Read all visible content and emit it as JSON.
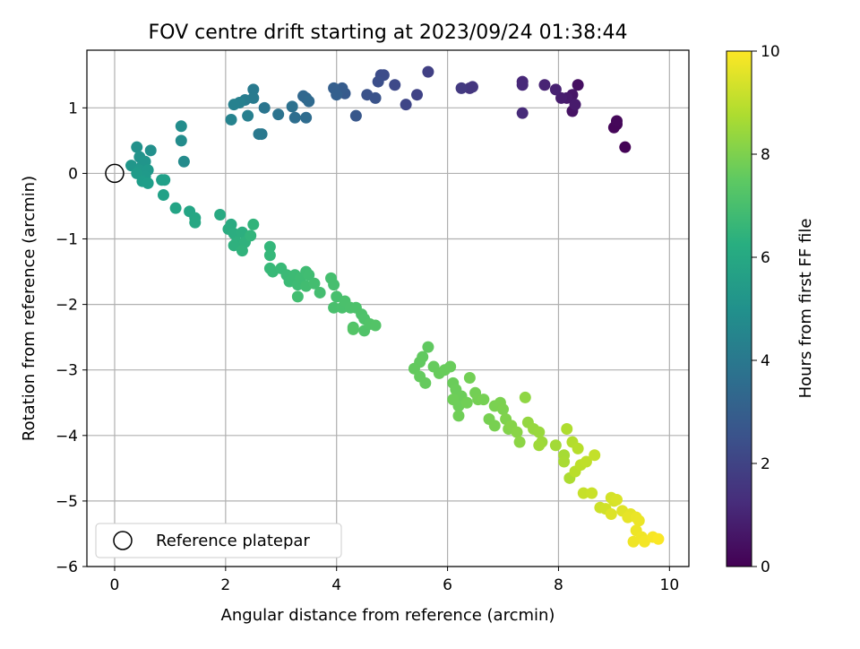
{
  "chart_data": {
    "type": "scatter",
    "title": "FOV centre drift starting at 2023/09/24 01:38:44",
    "xlabel": "Angular distance from reference (arcmin)",
    "ylabel": "Rotation from reference (arcmin)",
    "xlim": [
      -0.5,
      10.35
    ],
    "ylim": [
      -6.0,
      1.88
    ],
    "xticks": [
      0,
      2,
      4,
      6,
      8,
      10
    ],
    "yticks": [
      -6,
      -5,
      -4,
      -3,
      -2,
      -1,
      0,
      1
    ],
    "grid": true,
    "colormap": "viridis",
    "colorbar": {
      "label": "Hours from first FF file",
      "range": [
        0,
        10
      ],
      "ticks": [
        0,
        2,
        4,
        6,
        8,
        10
      ]
    },
    "legend": {
      "placement": "lower-left",
      "entries": [
        "Reference platepar"
      ]
    },
    "reference_point": {
      "x": 0,
      "y": 0
    },
    "points": [
      {
        "x": 9.2,
        "y": 0.4,
        "c": 0.05
      },
      {
        "x": 9.05,
        "y": 0.75,
        "c": 0.1
      },
      {
        "x": 9.0,
        "y": 0.7,
        "c": 0.15
      },
      {
        "x": 9.05,
        "y": 0.8,
        "c": 0.2
      },
      {
        "x": 8.35,
        "y": 1.35,
        "c": 0.4
      },
      {
        "x": 8.25,
        "y": 0.95,
        "c": 0.5
      },
      {
        "x": 8.25,
        "y": 1.2,
        "c": 0.6
      },
      {
        "x": 8.15,
        "y": 1.15,
        "c": 0.7
      },
      {
        "x": 8.3,
        "y": 1.05,
        "c": 0.75
      },
      {
        "x": 8.05,
        "y": 1.15,
        "c": 0.8
      },
      {
        "x": 7.95,
        "y": 1.28,
        "c": 0.9
      },
      {
        "x": 7.75,
        "y": 1.35,
        "c": 1.0
      },
      {
        "x": 7.35,
        "y": 1.4,
        "c": 1.1
      },
      {
        "x": 7.35,
        "y": 1.35,
        "c": 1.15
      },
      {
        "x": 7.35,
        "y": 0.92,
        "c": 1.2
      },
      {
        "x": 6.4,
        "y": 1.3,
        "c": 1.5
      },
      {
        "x": 6.45,
        "y": 1.32,
        "c": 1.6
      },
      {
        "x": 6.25,
        "y": 1.3,
        "c": 1.7
      },
      {
        "x": 5.65,
        "y": 1.55,
        "c": 1.9
      },
      {
        "x": 5.45,
        "y": 1.2,
        "c": 2.0
      },
      {
        "x": 5.25,
        "y": 1.05,
        "c": 2.1
      },
      {
        "x": 5.05,
        "y": 1.35,
        "c": 2.2
      },
      {
        "x": 4.8,
        "y": 1.5,
        "c": 2.3
      },
      {
        "x": 4.85,
        "y": 1.5,
        "c": 2.35
      },
      {
        "x": 4.75,
        "y": 1.4,
        "c": 2.4
      },
      {
        "x": 4.55,
        "y": 1.2,
        "c": 2.5
      },
      {
        "x": 4.7,
        "y": 1.15,
        "c": 2.55
      },
      {
        "x": 4.35,
        "y": 0.88,
        "c": 2.7
      },
      {
        "x": 4.15,
        "y": 1.22,
        "c": 2.8
      },
      {
        "x": 4.05,
        "y": 1.25,
        "c": 2.85
      },
      {
        "x": 4.1,
        "y": 1.3,
        "c": 2.9
      },
      {
        "x": 3.95,
        "y": 1.3,
        "c": 3.0
      },
      {
        "x": 4.0,
        "y": 1.2,
        "c": 3.05
      },
      {
        "x": 3.45,
        "y": 1.15,
        "c": 3.3
      },
      {
        "x": 3.4,
        "y": 1.18,
        "c": 3.35
      },
      {
        "x": 3.5,
        "y": 1.1,
        "c": 3.4
      },
      {
        "x": 3.45,
        "y": 0.85,
        "c": 3.5
      },
      {
        "x": 3.25,
        "y": 0.85,
        "c": 3.6
      },
      {
        "x": 3.2,
        "y": 1.02,
        "c": 3.7
      },
      {
        "x": 2.95,
        "y": 0.9,
        "c": 3.8
      },
      {
        "x": 2.7,
        "y": 1.0,
        "c": 3.9
      },
      {
        "x": 2.65,
        "y": 0.6,
        "c": 4.0
      },
      {
        "x": 2.6,
        "y": 0.6,
        "c": 4.05
      },
      {
        "x": 2.5,
        "y": 1.28,
        "c": 4.1
      },
      {
        "x": 2.5,
        "y": 1.15,
        "c": 4.15
      },
      {
        "x": 2.35,
        "y": 1.12,
        "c": 4.2
      },
      {
        "x": 2.4,
        "y": 0.88,
        "c": 4.3
      },
      {
        "x": 2.25,
        "y": 1.08,
        "c": 4.35
      },
      {
        "x": 2.15,
        "y": 1.05,
        "c": 4.4
      },
      {
        "x": 2.1,
        "y": 0.82,
        "c": 4.5
      },
      {
        "x": 1.25,
        "y": 0.18,
        "c": 4.8
      },
      {
        "x": 1.2,
        "y": 0.5,
        "c": 4.85
      },
      {
        "x": 1.2,
        "y": 0.72,
        "c": 4.9
      },
      {
        "x": 0.65,
        "y": 0.35,
        "c": 5.0
      },
      {
        "x": 0.4,
        "y": 0.4,
        "c": 5.05
      },
      {
        "x": 0.45,
        "y": 0.25,
        "c": 5.1
      },
      {
        "x": 0.5,
        "y": 0.12,
        "c": 5.15
      },
      {
        "x": 0.55,
        "y": 0.18,
        "c": 5.2
      },
      {
        "x": 0.3,
        "y": 0.12,
        "c": 5.25
      },
      {
        "x": 0.45,
        "y": 0.05,
        "c": 5.3
      },
      {
        "x": 0.6,
        "y": 0.05,
        "c": 5.35
      },
      {
        "x": 0.55,
        "y": -0.05,
        "c": 5.4
      },
      {
        "x": 0.4,
        "y": 0.0,
        "c": 5.45
      },
      {
        "x": 0.5,
        "y": -0.12,
        "c": 5.5
      },
      {
        "x": 0.6,
        "y": -0.15,
        "c": 5.55
      },
      {
        "x": 0.85,
        "y": -0.1,
        "c": 5.6
      },
      {
        "x": 0.9,
        "y": -0.1,
        "c": 5.65
      },
      {
        "x": 0.88,
        "y": -0.33,
        "c": 5.7
      },
      {
        "x": 1.1,
        "y": -0.53,
        "c": 5.8
      },
      {
        "x": 1.35,
        "y": -0.58,
        "c": 5.85
      },
      {
        "x": 1.45,
        "y": -0.68,
        "c": 5.9
      },
      {
        "x": 1.45,
        "y": -0.75,
        "c": 5.95
      },
      {
        "x": 1.9,
        "y": -0.63,
        "c": 6.05
      },
      {
        "x": 2.1,
        "y": -0.78,
        "c": 6.1
      },
      {
        "x": 2.05,
        "y": -0.85,
        "c": 6.15
      },
      {
        "x": 2.15,
        "y": -0.92,
        "c": 6.2
      },
      {
        "x": 2.3,
        "y": -0.9,
        "c": 6.25
      },
      {
        "x": 2.2,
        "y": -1.05,
        "c": 6.3
      },
      {
        "x": 2.15,
        "y": -1.1,
        "c": 6.35
      },
      {
        "x": 2.35,
        "y": -1.05,
        "c": 6.4
      },
      {
        "x": 2.3,
        "y": -1.18,
        "c": 6.45
      },
      {
        "x": 2.5,
        "y": -0.78,
        "c": 6.5
      },
      {
        "x": 2.45,
        "y": -0.95,
        "c": 6.55
      },
      {
        "x": 2.8,
        "y": -1.12,
        "c": 6.6
      },
      {
        "x": 2.8,
        "y": -1.25,
        "c": 6.65
      },
      {
        "x": 2.8,
        "y": -1.45,
        "c": 6.7
      },
      {
        "x": 2.85,
        "y": -1.5,
        "c": 6.72
      },
      {
        "x": 3.0,
        "y": -1.45,
        "c": 6.75
      },
      {
        "x": 3.1,
        "y": -1.55,
        "c": 6.78
      },
      {
        "x": 3.15,
        "y": -1.65,
        "c": 6.8
      },
      {
        "x": 3.25,
        "y": -1.55,
        "c": 6.82
      },
      {
        "x": 3.3,
        "y": -1.7,
        "c": 6.84
      },
      {
        "x": 3.35,
        "y": -1.6,
        "c": 6.86
      },
      {
        "x": 3.45,
        "y": -1.5,
        "c": 6.88
      },
      {
        "x": 3.5,
        "y": -1.55,
        "c": 6.9
      },
      {
        "x": 3.45,
        "y": -1.72,
        "c": 6.92
      },
      {
        "x": 3.3,
        "y": -1.88,
        "c": 6.94
      },
      {
        "x": 3.6,
        "y": -1.68,
        "c": 6.96
      },
      {
        "x": 3.7,
        "y": -1.82,
        "c": 6.98
      },
      {
        "x": 3.9,
        "y": -1.6,
        "c": 7.0
      },
      {
        "x": 3.95,
        "y": -1.7,
        "c": 7.02
      },
      {
        "x": 4.0,
        "y": -1.88,
        "c": 7.04
      },
      {
        "x": 3.95,
        "y": -2.05,
        "c": 7.06
      },
      {
        "x": 4.1,
        "y": -2.05,
        "c": 7.08
      },
      {
        "x": 4.15,
        "y": -1.95,
        "c": 7.1
      },
      {
        "x": 4.25,
        "y": -2.05,
        "c": 7.12
      },
      {
        "x": 4.35,
        "y": -2.05,
        "c": 7.14
      },
      {
        "x": 4.45,
        "y": -2.15,
        "c": 7.16
      },
      {
        "x": 4.5,
        "y": -2.22,
        "c": 7.18
      },
      {
        "x": 4.3,
        "y": -2.35,
        "c": 7.2
      },
      {
        "x": 4.5,
        "y": -2.4,
        "c": 7.22
      },
      {
        "x": 4.6,
        "y": -2.3,
        "c": 7.24
      },
      {
        "x": 4.7,
        "y": -2.32,
        "c": 7.26
      },
      {
        "x": 4.3,
        "y": -2.38,
        "c": 7.28
      },
      {
        "x": 5.65,
        "y": -2.65,
        "c": 7.5
      },
      {
        "x": 5.55,
        "y": -2.8,
        "c": 7.52
      },
      {
        "x": 5.5,
        "y": -2.88,
        "c": 7.54
      },
      {
        "x": 5.4,
        "y": -2.98,
        "c": 7.56
      },
      {
        "x": 5.5,
        "y": -3.1,
        "c": 7.58
      },
      {
        "x": 5.6,
        "y": -3.2,
        "c": 7.6
      },
      {
        "x": 5.75,
        "y": -2.95,
        "c": 7.62
      },
      {
        "x": 5.85,
        "y": -3.05,
        "c": 7.64
      },
      {
        "x": 5.95,
        "y": -3.0,
        "c": 7.66
      },
      {
        "x": 6.05,
        "y": -2.95,
        "c": 7.68
      },
      {
        "x": 6.1,
        "y": -3.2,
        "c": 7.7
      },
      {
        "x": 6.15,
        "y": -3.3,
        "c": 7.72
      },
      {
        "x": 6.25,
        "y": -3.4,
        "c": 7.74
      },
      {
        "x": 6.2,
        "y": -3.55,
        "c": 7.76
      },
      {
        "x": 6.1,
        "y": -3.45,
        "c": 7.78
      },
      {
        "x": 6.2,
        "y": -3.7,
        "c": 7.8
      },
      {
        "x": 6.35,
        "y": -3.5,
        "c": 7.82
      },
      {
        "x": 6.4,
        "y": -3.12,
        "c": 7.84
      },
      {
        "x": 6.5,
        "y": -3.35,
        "c": 7.86
      },
      {
        "x": 6.55,
        "y": -3.45,
        "c": 7.88
      },
      {
        "x": 6.65,
        "y": -3.45,
        "c": 7.9
      },
      {
        "x": 6.75,
        "y": -3.75,
        "c": 7.92
      },
      {
        "x": 6.85,
        "y": -3.85,
        "c": 7.94
      },
      {
        "x": 6.85,
        "y": -3.55,
        "c": 7.96
      },
      {
        "x": 6.95,
        "y": -3.5,
        "c": 7.98
      },
      {
        "x": 7.0,
        "y": -3.6,
        "c": 8.0
      },
      {
        "x": 7.05,
        "y": -3.75,
        "c": 8.05
      },
      {
        "x": 7.1,
        "y": -3.9,
        "c": 8.1
      },
      {
        "x": 7.15,
        "y": -3.85,
        "c": 8.15
      },
      {
        "x": 7.25,
        "y": -3.95,
        "c": 8.2
      },
      {
        "x": 7.3,
        "y": -4.1,
        "c": 8.25
      },
      {
        "x": 7.4,
        "y": -3.42,
        "c": 8.3
      },
      {
        "x": 7.45,
        "y": -3.8,
        "c": 8.35
      },
      {
        "x": 7.55,
        "y": -3.9,
        "c": 8.4
      },
      {
        "x": 7.65,
        "y": -3.95,
        "c": 8.45
      },
      {
        "x": 7.7,
        "y": -4.1,
        "c": 8.5
      },
      {
        "x": 7.65,
        "y": -4.15,
        "c": 8.55
      },
      {
        "x": 7.95,
        "y": -4.15,
        "c": 8.6
      },
      {
        "x": 8.1,
        "y": -4.3,
        "c": 8.65
      },
      {
        "x": 8.1,
        "y": -4.4,
        "c": 8.7
      },
      {
        "x": 8.2,
        "y": -4.65,
        "c": 8.75
      },
      {
        "x": 8.15,
        "y": -3.9,
        "c": 8.8
      },
      {
        "x": 8.25,
        "y": -4.1,
        "c": 8.85
      },
      {
        "x": 8.35,
        "y": -4.2,
        "c": 8.9
      },
      {
        "x": 8.3,
        "y": -4.55,
        "c": 8.95
      },
      {
        "x": 8.4,
        "y": -4.45,
        "c": 9.0
      },
      {
        "x": 8.5,
        "y": -4.4,
        "c": 9.05
      },
      {
        "x": 8.65,
        "y": -4.3,
        "c": 9.1
      },
      {
        "x": 8.45,
        "y": -4.88,
        "c": 9.15
      },
      {
        "x": 8.6,
        "y": -4.88,
        "c": 9.2
      },
      {
        "x": 8.75,
        "y": -5.1,
        "c": 9.25
      },
      {
        "x": 8.85,
        "y": -5.12,
        "c": 9.3
      },
      {
        "x": 8.95,
        "y": -4.95,
        "c": 9.35
      },
      {
        "x": 9.0,
        "y": -5.0,
        "c": 9.4
      },
      {
        "x": 9.05,
        "y": -4.98,
        "c": 9.45
      },
      {
        "x": 8.95,
        "y": -5.2,
        "c": 9.5
      },
      {
        "x": 9.15,
        "y": -5.15,
        "c": 9.55
      },
      {
        "x": 9.3,
        "y": -5.2,
        "c": 9.6
      },
      {
        "x": 9.25,
        "y": -5.25,
        "c": 9.65
      },
      {
        "x": 9.4,
        "y": -5.25,
        "c": 9.7
      },
      {
        "x": 9.45,
        "y": -5.3,
        "c": 9.72
      },
      {
        "x": 9.4,
        "y": -5.45,
        "c": 9.75
      },
      {
        "x": 9.35,
        "y": -5.62,
        "c": 9.78
      },
      {
        "x": 9.5,
        "y": -5.55,
        "c": 9.8
      },
      {
        "x": 9.55,
        "y": -5.62,
        "c": 9.85
      },
      {
        "x": 9.7,
        "y": -5.55,
        "c": 9.9
      },
      {
        "x": 9.8,
        "y": -5.58,
        "c": 9.95
      }
    ]
  }
}
